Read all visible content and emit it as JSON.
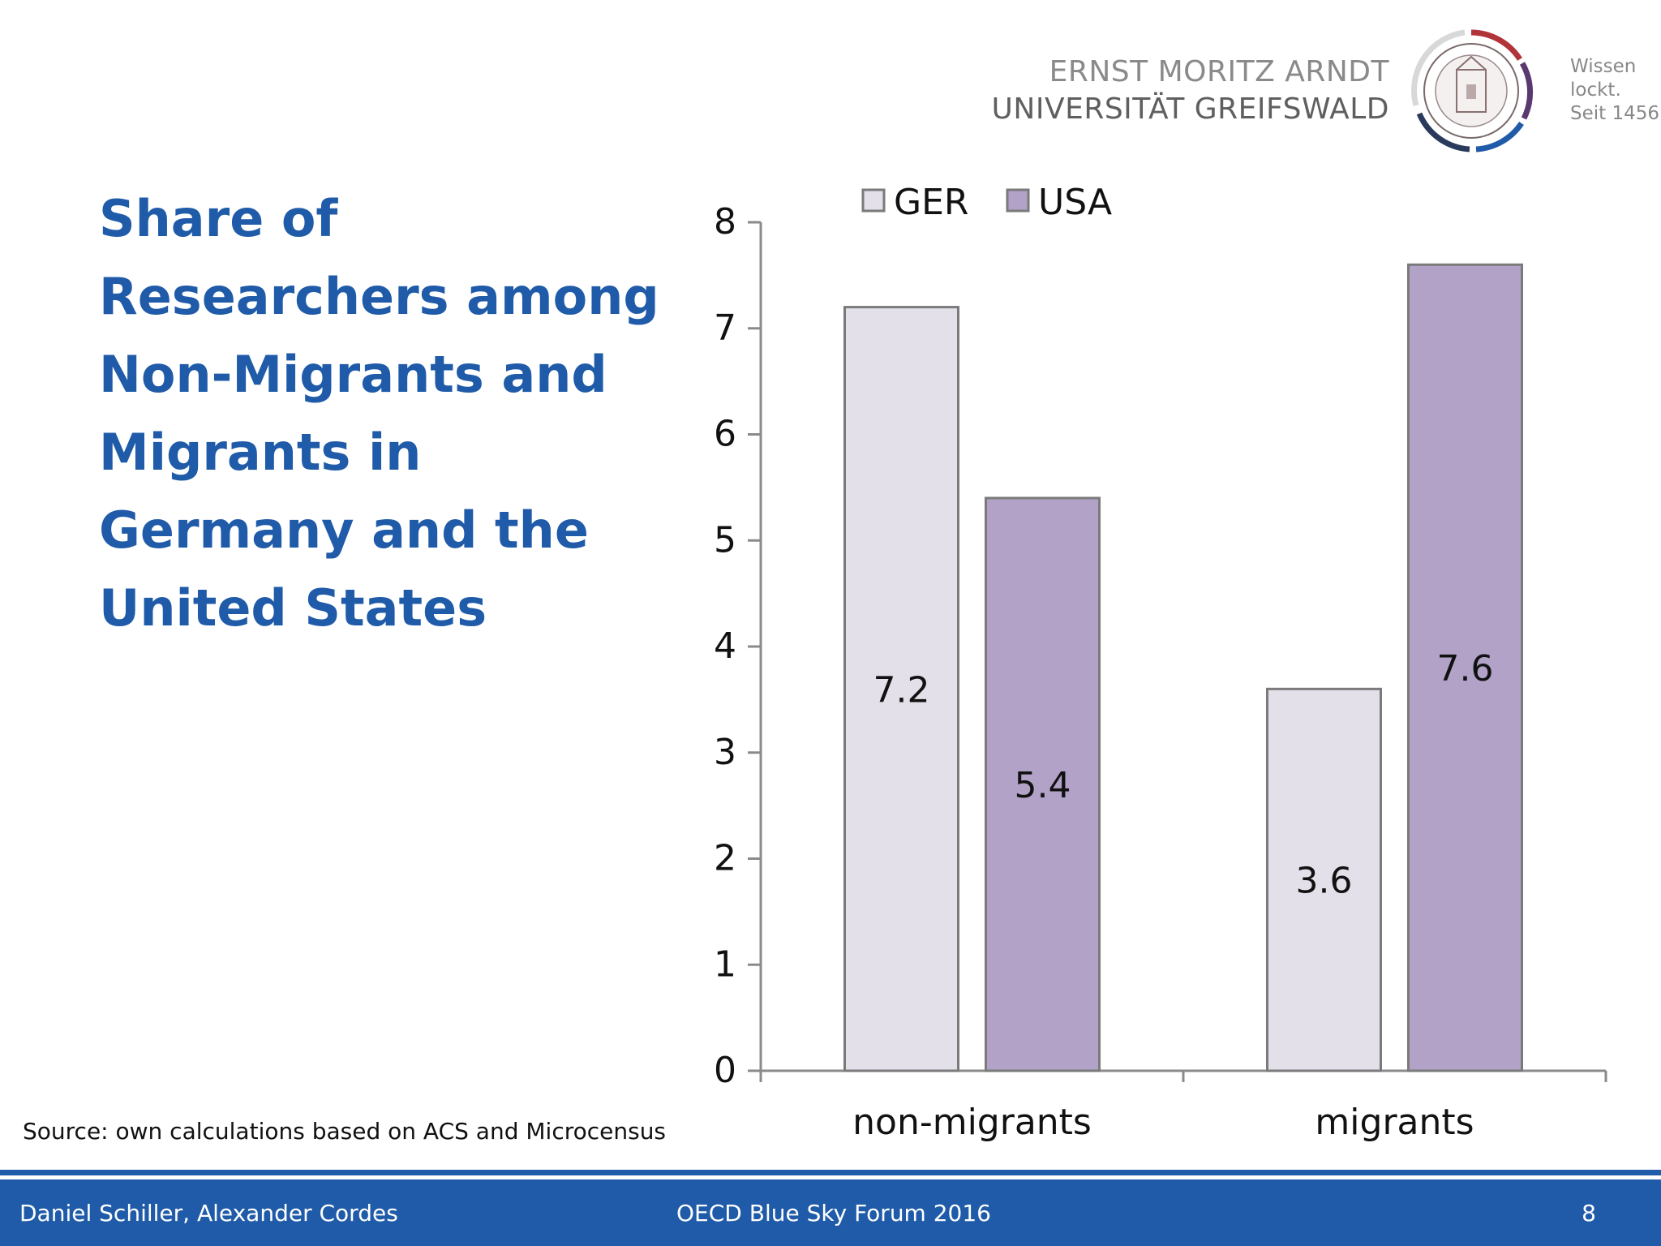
{
  "header": {
    "university_line1": "ERNST MORITZ ARNDT",
    "university_line2": "UNIVERSITÄT GREIFSWALD",
    "motto_line1": "Wissen",
    "motto_line2": "lockt.",
    "motto_line3": "Seit 1456"
  },
  "slide": {
    "title": "Share of Researchers among Non-Migrants and Migrants in Germany and the United States",
    "source": "Source: own calculations based on ACS and Microcensus"
  },
  "footer": {
    "authors": "Daniel Schiller, Alexander Cordes",
    "event": "OECD Blue Sky Forum 2016",
    "page_number": "8"
  },
  "colors": {
    "title": "#1f5ba8",
    "footer": "#1f5ba8",
    "ger_fill": "#e3e0ea",
    "usa_fill": "#b2a2c8",
    "bar_stroke": "#7a7a7a"
  },
  "chart_data": {
    "type": "bar",
    "categories": [
      "non-migrants",
      "migrants"
    ],
    "series": [
      {
        "name": "GER",
        "values": [
          7.2,
          3.6
        ]
      },
      {
        "name": "USA",
        "values": [
          5.4,
          7.6
        ]
      }
    ],
    "data_labels": [
      [
        "7.2",
        "3.6"
      ],
      [
        "5.4",
        "7.6"
      ]
    ],
    "ylim": [
      0,
      8
    ],
    "yticks": [
      0,
      1,
      2,
      3,
      4,
      5,
      6,
      7,
      8
    ],
    "legend_position": "top",
    "grid": false
  }
}
